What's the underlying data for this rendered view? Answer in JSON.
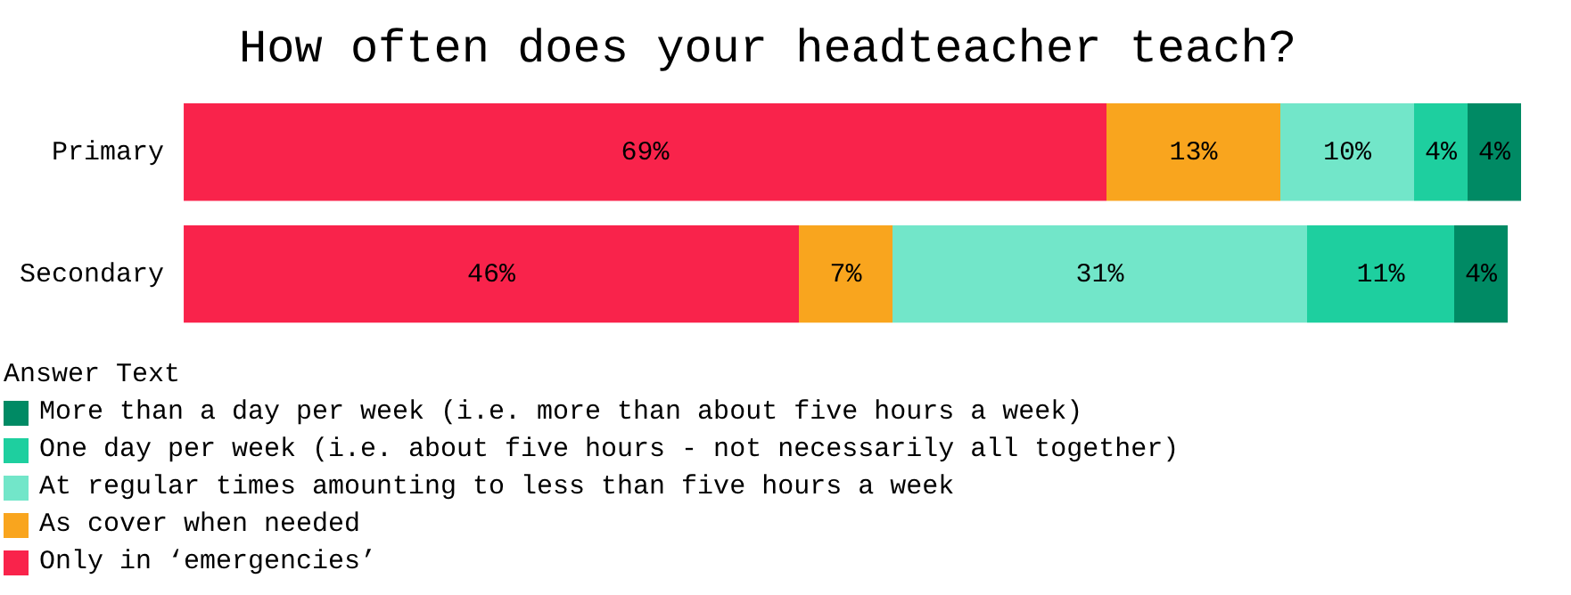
{
  "chart_data": {
    "type": "bar",
    "orientation": "horizontal",
    "stacked": true,
    "title": "How often does your headteacher teach?",
    "legend_title": "Answer Text",
    "legend": "bottom left",
    "tick_labels": "y",
    "xlim": [
      0,
      100
    ],
    "categories": [
      "Primary",
      "Secondary"
    ],
    "series": [
      {
        "name": "Only in ‘emergencies’",
        "color": "#f9234b",
        "values": [
          69,
          46
        ],
        "value_labels": [
          "69%",
          "46%"
        ]
      },
      {
        "name": "As cover when needed",
        "color": "#f9a51e",
        "values": [
          13,
          7
        ],
        "value_labels": [
          "13%",
          "7%"
        ]
      },
      {
        "name": "At regular times amounting to less than five hours a week",
        "color": "#72e6c9",
        "values": [
          10,
          31
        ],
        "value_labels": [
          "10%",
          "31%"
        ]
      },
      {
        "name": "One day per week (i.e. about five hours - not necessarily all together)",
        "color": "#1ecf9f",
        "values": [
          4,
          11
        ],
        "value_labels": [
          "4%",
          "11%"
        ]
      },
      {
        "name": "More than a day per week (i.e. more than about five hours a week)",
        "color": "#008a64",
        "values": [
          4,
          4
        ],
        "value_labels": [
          "4%",
          "4%"
        ]
      }
    ]
  }
}
